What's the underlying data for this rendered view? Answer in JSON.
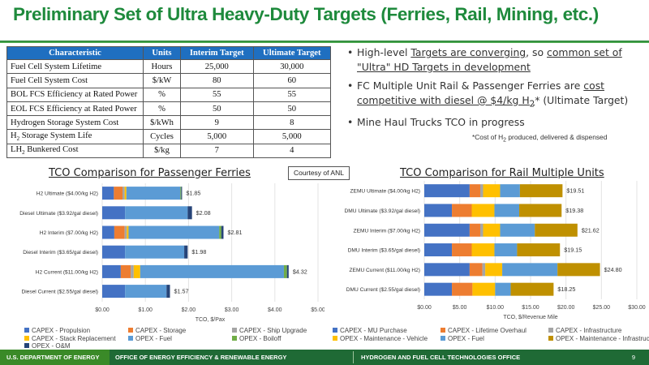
{
  "title": "Preliminary Set of Ultra Heavy-Duty Targets (Ferries, Rail, Mining, etc.)",
  "targets_table": {
    "headers": [
      "Characteristic",
      "Units",
      "Interim Target",
      "Ultimate Target"
    ],
    "rows": [
      {
        "characteristic": "Fuel Cell System Lifetime",
        "sub": "",
        "after": "",
        "units": "Hours",
        "interim": "25,000",
        "ultimate": "30,000"
      },
      {
        "characteristic": "Fuel Cell System Cost",
        "sub": "",
        "after": "",
        "units": "$/kW",
        "interim": "80",
        "ultimate": "60"
      },
      {
        "characteristic": "BOL FCS Efficiency at Rated Power",
        "sub": "",
        "after": "",
        "units": "%",
        "interim": "55",
        "ultimate": "55"
      },
      {
        "characteristic": "EOL FCS Efficiency at Rated Power",
        "sub": "",
        "after": "",
        "units": "%",
        "interim": "50",
        "ultimate": "50"
      },
      {
        "characteristic": "Hydrogen Storage System Cost",
        "sub": "",
        "after": "",
        "units": "$/kWh",
        "interim": "9",
        "ultimate": "8"
      },
      {
        "characteristic": "H",
        "sub": "2",
        "after": " Storage System Life",
        "units": "Cycles",
        "interim": "5,000",
        "ultimate": "5,000"
      },
      {
        "characteristic": "LH",
        "sub": "2",
        "after": " Bunkered Cost",
        "units": "$/kg",
        "interim": "7",
        "ultimate": "4"
      }
    ]
  },
  "bullets": {
    "b1": {
      "pre": "High-level ",
      "u1": "Targets are converging",
      "mid": ", so ",
      "u2": "common set of \"Ultra\" HD Targets in development"
    },
    "b2": {
      "pre": "FC Multiple Unit Rail & Passenger Ferries are ",
      "u1": "cost competitive with diesel @ $4/kg H",
      "sub": "2",
      "post": "* (Ultimate Target)"
    },
    "b3": {
      "text": "Mine Haul Trucks TCO in progress"
    },
    "bullet_char": "•"
  },
  "footnote": {
    "pre": "*Cost of H",
    "sub": "2",
    "post": " produced, delivered & dispensed"
  },
  "courtesy": "Courtesy of ANL",
  "chart_data": [
    {
      "type": "bar",
      "orientation": "horizontal",
      "stacked": true,
      "title": "TCO Comparison for Passenger Ferries",
      "xlabel": "TCO, $/Pax",
      "ylabel": "",
      "xlim": [
        0,
        5
      ],
      "x_ticks": [
        "$0.00",
        "$1.00",
        "$2.00",
        "$3.00",
        "$4.00",
        "$5.00"
      ],
      "grid": true,
      "legend_placement": "bottom",
      "totals_note": "Totals are read from the data labels printed on the chart.",
      "segments_note": "Per-segment values are approximate, estimated from bar pixel widths; they are not printed in the source image.",
      "categories": [
        "H2 Ultimate ($4.00/kg H2)",
        "Diesel Ultimate ($3.92/gal diesel)",
        "H2 Interim ($7.00/kg H2)",
        "Diesel Interim ($3.65/gal diesel)",
        "H2 Current ($11.00/kg H2)",
        "Diesel Current ($2.55/gal diesel)"
      ],
      "totals": [
        1.85,
        2.08,
        2.81,
        1.98,
        4.32,
        1.57
      ],
      "total_labels": [
        "$1.85",
        "$2.08",
        "$2.81",
        "$1.98",
        "$4.32",
        "$1.57"
      ],
      "series": [
        {
          "name": "CAPEX - Propulsion",
          "color": "#4472c4",
          "approximate": true,
          "values": [
            0.27,
            0.53,
            0.28,
            0.53,
            0.43,
            0.53
          ]
        },
        {
          "name": "CAPEX - Storage",
          "color": "#ed7d31",
          "approximate": true,
          "values": [
            0.2,
            0,
            0.24,
            0,
            0.23,
            0
          ]
        },
        {
          "name": "CAPEX - Ship Upgrade",
          "color": "#a5a5a5",
          "approximate": true,
          "values": [
            0.05,
            0,
            0.05,
            0,
            0.07,
            0
          ]
        },
        {
          "name": "CAPEX - Stack Replacement",
          "color": "#ffc000",
          "approximate": true,
          "values": [
            0.04,
            0,
            0.04,
            0,
            0.15,
            0
          ]
        },
        {
          "name": "OPEX - Fuel",
          "color": "#5b9bd5",
          "approximate": true,
          "values": [
            1.25,
            1.45,
            2.1,
            1.37,
            3.33,
            0.96
          ]
        },
        {
          "name": "OPEX - Boiloff",
          "color": "#70ad47",
          "approximate": true,
          "values": [
            0.02,
            0,
            0.05,
            0,
            0.07,
            0
          ]
        },
        {
          "name": "OPEX - O&M",
          "color": "#264478",
          "approximate": true,
          "values": [
            0.02,
            0.1,
            0.05,
            0.08,
            0.04,
            0.08
          ]
        }
      ]
    },
    {
      "type": "bar",
      "orientation": "horizontal",
      "stacked": true,
      "title": "TCO Comparison for Rail Multiple Units",
      "xlabel": "TCO, $/Revenue Mile",
      "ylabel": "",
      "xlim": [
        0,
        30
      ],
      "x_ticks": [
        "$0.00",
        "$5.00",
        "$10.00",
        "$15.00",
        "$20.00",
        "$25.00",
        "$30.00"
      ],
      "grid": true,
      "legend_placement": "bottom",
      "totals_note": "Totals are read from the data labels printed on the chart.",
      "segments_note": "Per-segment values are approximate, estimated from bar pixel widths; they are not printed in the source image.",
      "categories": [
        "ZEMU Ultimate ($4.00/kg H2)",
        "DMU Ultimate ($3.92/gal diesel)",
        "ZEMU Interim ($7.00/kg H2)",
        "DMU Interim ($3.65/gal diesel)",
        "ZEMU Current ($11.00/kg H2)",
        "DMU Current ($2.55/gal diesel)"
      ],
      "totals": [
        19.51,
        19.38,
        21.62,
        19.15,
        24.8,
        18.25
      ],
      "total_labels": [
        "$19.51",
        "$19.38",
        "$21.62",
        "$19.15",
        "$24.80",
        "$18.25"
      ],
      "series": [
        {
          "name": "CAPEX - MU Purchase",
          "color": "#4472c4",
          "approximate": true,
          "values": [
            6.4,
            3.9,
            6.4,
            3.9,
            6.4,
            3.9
          ]
        },
        {
          "name": "CAPEX - Lifetime Overhaul",
          "color": "#ed7d31",
          "approximate": true,
          "values": [
            1.5,
            2.8,
            1.5,
            2.8,
            1.8,
            2.9
          ]
        },
        {
          "name": "CAPEX - Infrastructure",
          "color": "#a5a5a5",
          "approximate": true,
          "values": [
            0.4,
            0,
            0.4,
            0,
            0.4,
            0
          ]
        },
        {
          "name": "OPEX - Maintenance - Vehicle",
          "color": "#ffc000",
          "approximate": true,
          "values": [
            2.4,
            3.2,
            2.4,
            3.2,
            2.4,
            3.2
          ]
        },
        {
          "name": "OPEX - Fuel",
          "color": "#5b9bd5",
          "approximate": true,
          "values": [
            2.8,
            3.5,
            4.9,
            3.2,
            7.8,
            2.2
          ]
        },
        {
          "name": "OPEX - Maintenance - Infrastructure",
          "color": "#bf9000",
          "approximate": true,
          "values": [
            6.01,
            5.98,
            6.02,
            6.05,
            6.0,
            6.05
          ]
        }
      ]
    }
  ],
  "footer": {
    "doe": "U.S. DEPARTMENT OF ENERGY",
    "eere": "OFFICE OF ENERGY EFFICIENCY & RENEWABLE ENERGY",
    "hfto": "HYDROGEN AND FUEL CELL TECHNOLOGIES OFFICE",
    "page": "9"
  }
}
